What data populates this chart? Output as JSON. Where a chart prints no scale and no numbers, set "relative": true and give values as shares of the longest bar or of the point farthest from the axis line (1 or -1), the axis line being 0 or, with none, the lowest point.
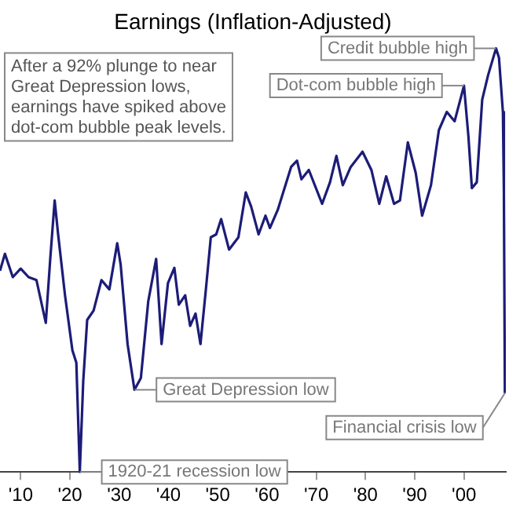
{
  "chart_data": {
    "type": "line",
    "title": "Earnings (Inflation-Adjusted)",
    "relative": true,
    "color": "#1c1c78",
    "grid": false,
    "legend": false,
    "marker": "none",
    "line_style": "solid",
    "xlim": [
      1905.8,
      2008.5
    ],
    "xticks": [
      {
        "value": 1910,
        "label": "'10"
      },
      {
        "value": 1920,
        "label": "'20"
      },
      {
        "value": 1930,
        "label": "'30"
      },
      {
        "value": 1940,
        "label": "'40"
      },
      {
        "value": 1950,
        "label": "'50"
      },
      {
        "value": 1960,
        "label": "'60"
      },
      {
        "value": 1970,
        "label": "'70"
      },
      {
        "value": 1980,
        "label": "'80"
      },
      {
        "value": 1990,
        "label": "'90"
      },
      {
        "value": 2000,
        "label": "'00"
      }
    ],
    "x": [
      1905.8,
      1906.8,
      1908.4,
      1910,
      1911.6,
      1913.2,
      1915.1,
      1916,
      1916.9,
      1917.6,
      1919,
      1920.5,
      1921.3,
      1922,
      1922.7,
      1923.5,
      1924.8,
      1926.4,
      1928,
      1929.6,
      1930.3,
      1931.7,
      1933.1,
      1934.4,
      1935.9,
      1937.5,
      1938.6,
      1939.9,
      1941.2,
      1942.1,
      1943.4,
      1944.4,
      1945.5,
      1946.5,
      1947.6,
      1948.6,
      1949.7,
      1950.7,
      1952.3,
      1954.2,
      1955.7,
      1956.8,
      1958.3,
      1959.7,
      1960.6,
      1962.2,
      1964.9,
      1966.1,
      1967,
      1968.5,
      1971.2,
      1972.8,
      1974.1,
      1975.4,
      1977,
      1979.4,
      1981.2,
      1982.8,
      1984.2,
      1985.8,
      1987,
      1988.6,
      1990.2,
      1991.5,
      1993.3,
      1994.9,
      1996.5,
      1998.1,
      2000,
      2000.9,
      2001.6,
      2002.6,
      2003.7,
      2004.9,
      2006.5,
      2007.1,
      2007.9,
      2008.1,
      2008.3
    ],
    "values": [
      0.475,
      0.515,
      0.46,
      0.48,
      0.46,
      0.453,
      0.352,
      0.503,
      0.641,
      0.561,
      0.417,
      0.287,
      0.258,
      0,
      0.215,
      0.359,
      0.381,
      0.453,
      0.431,
      0.54,
      0.489,
      0.302,
      0.194,
      0.222,
      0.403,
      0.503,
      0.302,
      0.446,
      0.482,
      0.395,
      0.417,
      0.345,
      0.374,
      0.302,
      0.431,
      0.554,
      0.561,
      0.597,
      0.525,
      0.554,
      0.66,
      0.626,
      0.561,
      0.605,
      0.576,
      0.619,
      0.72,
      0.735,
      0.691,
      0.713,
      0.633,
      0.684,
      0.746,
      0.677,
      0.72,
      0.756,
      0.713,
      0.633,
      0.698,
      0.633,
      0.641,
      0.778,
      0.706,
      0.605,
      0.677,
      0.807,
      0.85,
      0.828,
      0.912,
      0.792,
      0.67,
      0.684,
      0.879,
      0.937,
      1,
      0.978,
      0.85,
      0.662,
      0.186
    ],
    "annotations": [
      "After a 92% plunge to near Great Depression lows, earnings have spiked above dot-com bubble peak levels.",
      {
        "text": "Credit bubble high",
        "x": 2006.5,
        "y": 1
      },
      {
        "text": "Dot-com bubble high",
        "x": 2000,
        "y": 0.912
      },
      {
        "text": "Great Depression low",
        "x": 1933.1,
        "y": 0.194
      },
      {
        "text": "1920-21 recession low",
        "x": 1922,
        "y": 0
      },
      {
        "text": "Financial crisis low",
        "x": 2008.3,
        "y": 0.186
      }
    ]
  }
}
